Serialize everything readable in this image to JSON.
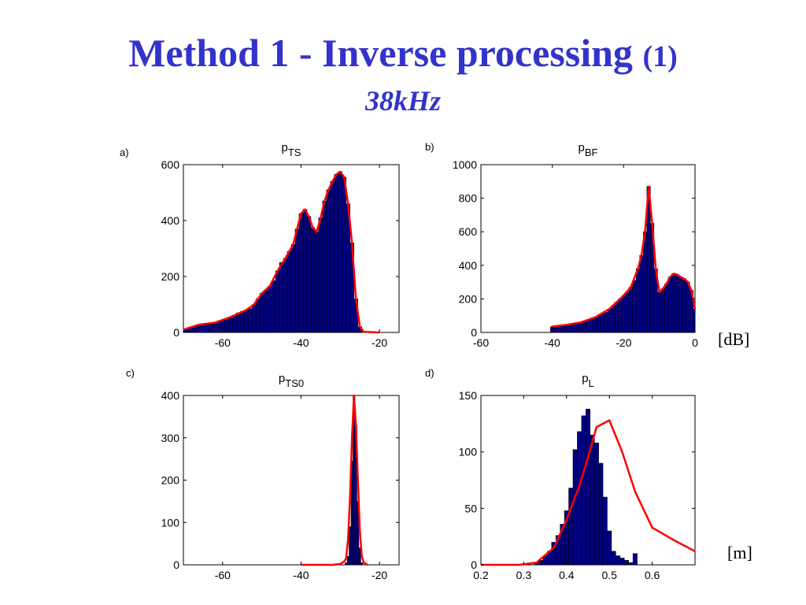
{
  "slide": {
    "title_main": "Method 1 - Inverse processing",
    "title_paren": "(1)",
    "subtitle": "38kHz",
    "unit_db": "[dB]",
    "unit_m": "[m]",
    "colors": {
      "title": "#3333cc",
      "bar": "#000080",
      "curve": "#ff0000"
    }
  },
  "chart_data": [
    {
      "id": "a",
      "type": "bar",
      "panel_label": "a)",
      "title_base": "p",
      "title_sub": "TS",
      "xlim": [
        -70,
        -15
      ],
      "ylim": [
        0,
        600
      ],
      "xticks": [
        -60,
        -40,
        -20
      ],
      "yticks": [
        0,
        200,
        400,
        600
      ],
      "bin_width": 1,
      "bars": [
        [
          -70,
          10
        ],
        [
          -69,
          15
        ],
        [
          -68,
          20
        ],
        [
          -67,
          22
        ],
        [
          -66,
          28
        ],
        [
          -65,
          30
        ],
        [
          -64,
          32
        ],
        [
          -63,
          30
        ],
        [
          -62,
          35
        ],
        [
          -61,
          40
        ],
        [
          -60,
          45
        ],
        [
          -59,
          50
        ],
        [
          -58,
          55
        ],
        [
          -57,
          62
        ],
        [
          -56,
          70
        ],
        [
          -55,
          75
        ],
        [
          -54,
          80
        ],
        [
          -53,
          85
        ],
        [
          -52,
          100
        ],
        [
          -51,
          120
        ],
        [
          -50,
          140
        ],
        [
          -49,
          150
        ],
        [
          -48,
          165
        ],
        [
          -47,
          185
        ],
        [
          -46,
          220
        ],
        [
          -45,
          250
        ],
        [
          -44,
          265
        ],
        [
          -43,
          290
        ],
        [
          -42,
          315
        ],
        [
          -41,
          370
        ],
        [
          -40,
          425
        ],
        [
          -39,
          440
        ],
        [
          -38,
          415
        ],
        [
          -37,
          375
        ],
        [
          -36,
          360
        ],
        [
          -35,
          410
        ],
        [
          -34,
          470
        ],
        [
          -33,
          510
        ],
        [
          -32,
          540
        ],
        [
          -31,
          565
        ],
        [
          -30,
          575
        ],
        [
          -29,
          555
        ],
        [
          -28,
          460
        ],
        [
          -27,
          320
        ],
        [
          -26,
          120
        ],
        [
          -25,
          20
        ],
        [
          -24,
          2
        ]
      ],
      "curve": [
        [
          -70,
          10
        ],
        [
          -66,
          28
        ],
        [
          -62,
          35
        ],
        [
          -58,
          55
        ],
        [
          -54,
          80
        ],
        [
          -52,
          100
        ],
        [
          -50,
          140
        ],
        [
          -48,
          165
        ],
        [
          -46,
          220
        ],
        [
          -44,
          265
        ],
        [
          -42,
          315
        ],
        [
          -41,
          370
        ],
        [
          -40,
          425
        ],
        [
          -39,
          440
        ],
        [
          -38,
          415
        ],
        [
          -37,
          375
        ],
        [
          -36,
          360
        ],
        [
          -35,
          410
        ],
        [
          -34,
          470
        ],
        [
          -33,
          510
        ],
        [
          -32,
          540
        ],
        [
          -31,
          565
        ],
        [
          -30,
          575
        ],
        [
          -29,
          555
        ],
        [
          -28,
          460
        ],
        [
          -27,
          320
        ],
        [
          -26,
          120
        ],
        [
          -25,
          20
        ],
        [
          -24,
          2
        ],
        [
          -20,
          0
        ]
      ]
    },
    {
      "id": "b",
      "type": "bar",
      "panel_label": "b)",
      "title_base": "p",
      "title_sub": "BF",
      "xlim": [
        -60,
        0
      ],
      "ylim": [
        0,
        1000
      ],
      "xticks": [
        -60,
        -40,
        -20,
        0
      ],
      "yticks": [
        0,
        200,
        400,
        600,
        800,
        1000
      ],
      "bin_width": 1,
      "bars": [
        [
          -40,
          35
        ],
        [
          -39,
          40
        ],
        [
          -38,
          42
        ],
        [
          -37,
          40
        ],
        [
          -36,
          45
        ],
        [
          -35,
          50
        ],
        [
          -34,
          55
        ],
        [
          -33,
          58
        ],
        [
          -32,
          60
        ],
        [
          -31,
          65
        ],
        [
          -30,
          70
        ],
        [
          -29,
          80
        ],
        [
          -28,
          90
        ],
        [
          -27,
          100
        ],
        [
          -26,
          110
        ],
        [
          -25,
          120
        ],
        [
          -24,
          140
        ],
        [
          -23,
          160
        ],
        [
          -22,
          180
        ],
        [
          -21,
          200
        ],
        [
          -20,
          220
        ],
        [
          -19,
          240
        ],
        [
          -18,
          270
        ],
        [
          -17,
          310
        ],
        [
          -16,
          380
        ],
        [
          -15,
          460
        ],
        [
          -14,
          600
        ],
        [
          -13,
          870
        ],
        [
          -12,
          650
        ],
        [
          -11,
          380
        ],
        [
          -10,
          240
        ],
        [
          -9,
          260
        ],
        [
          -8,
          290
        ],
        [
          -7,
          330
        ],
        [
          -6,
          350
        ],
        [
          -5,
          345
        ],
        [
          -4,
          330
        ],
        [
          -3,
          320
        ],
        [
          -2,
          300
        ],
        [
          -1,
          250
        ],
        [
          0,
          140
        ]
      ],
      "curve": [
        [
          -40,
          35
        ],
        [
          -36,
          45
        ],
        [
          -32,
          60
        ],
        [
          -28,
          90
        ],
        [
          -24,
          140
        ],
        [
          -22,
          180
        ],
        [
          -20,
          220
        ],
        [
          -18,
          270
        ],
        [
          -16,
          380
        ],
        [
          -15,
          460
        ],
        [
          -14,
          600
        ],
        [
          -13,
          870
        ],
        [
          -12,
          650
        ],
        [
          -11,
          380
        ],
        [
          -10,
          240
        ],
        [
          -9,
          260
        ],
        [
          -8,
          290
        ],
        [
          -7,
          330
        ],
        [
          -6,
          350
        ],
        [
          -5,
          345
        ],
        [
          -4,
          330
        ],
        [
          -3,
          320
        ],
        [
          -2,
          300
        ],
        [
          -1,
          250
        ],
        [
          0,
          140
        ]
      ]
    },
    {
      "id": "c",
      "type": "bar",
      "panel_label": "c)",
      "title_base": "p",
      "title_sub": "TS0",
      "xlim": [
        -70,
        -15
      ],
      "ylim": [
        0,
        400
      ],
      "xticks": [
        -60,
        -40,
        -20
      ],
      "yticks": [
        0,
        100,
        200,
        300,
        400
      ],
      "bin_width": 0.5,
      "bars": [
        [
          -28.5,
          5
        ],
        [
          -28,
          20
        ],
        [
          -27.5,
          90
        ],
        [
          -27,
          245
        ],
        [
          -26.5,
          400
        ],
        [
          -26,
          330
        ],
        [
          -25.5,
          150
        ],
        [
          -25,
          40
        ],
        [
          -24.5,
          5
        ]
      ],
      "curve": [
        [
          -40,
          0
        ],
        [
          -32,
          0
        ],
        [
          -30,
          2
        ],
        [
          -29,
          8
        ],
        [
          -28.5,
          15
        ],
        [
          -28,
          60
        ],
        [
          -27.5,
          160
        ],
        [
          -27,
          300
        ],
        [
          -26.5,
          400
        ],
        [
          -26,
          330
        ],
        [
          -25.5,
          200
        ],
        [
          -25,
          80
        ],
        [
          -24.5,
          20
        ],
        [
          -24,
          5
        ],
        [
          -23,
          0
        ]
      ]
    },
    {
      "id": "d",
      "type": "bar",
      "panel_label": "d)",
      "title_base": "p",
      "title_sub": "L",
      "xlim": [
        0.2,
        0.7
      ],
      "ylim": [
        0,
        150
      ],
      "xticks": [
        0.2,
        0.3,
        0.4,
        0.5,
        0.6
      ],
      "yticks": [
        0,
        50,
        100,
        150
      ],
      "bin_width": 0.01,
      "bars": [
        [
          0.33,
          2
        ],
        [
          0.34,
          4
        ],
        [
          0.35,
          8
        ],
        [
          0.36,
          12
        ],
        [
          0.37,
          20
        ],
        [
          0.38,
          26
        ],
        [
          0.39,
          36
        ],
        [
          0.4,
          48
        ],
        [
          0.41,
          68
        ],
        [
          0.42,
          102
        ],
        [
          0.43,
          118
        ],
        [
          0.44,
          132
        ],
        [
          0.45,
          138
        ],
        [
          0.46,
          115
        ],
        [
          0.47,
          108
        ],
        [
          0.48,
          90
        ],
        [
          0.49,
          60
        ],
        [
          0.5,
          30
        ],
        [
          0.51,
          12
        ],
        [
          0.52,
          8
        ],
        [
          0.53,
          6
        ],
        [
          0.54,
          4
        ],
        [
          0.55,
          2
        ],
        [
          0.56,
          10
        ]
      ],
      "curve": [
        [
          0.2,
          0
        ],
        [
          0.29,
          0
        ],
        [
          0.33,
          2
        ],
        [
          0.37,
          15
        ],
        [
          0.4,
          40
        ],
        [
          0.43,
          70
        ],
        [
          0.45,
          95
        ],
        [
          0.47,
          122
        ],
        [
          0.5,
          128
        ],
        [
          0.53,
          100
        ],
        [
          0.56,
          65
        ],
        [
          0.6,
          33
        ],
        [
          0.65,
          22
        ],
        [
          0.7,
          12
        ]
      ]
    }
  ]
}
